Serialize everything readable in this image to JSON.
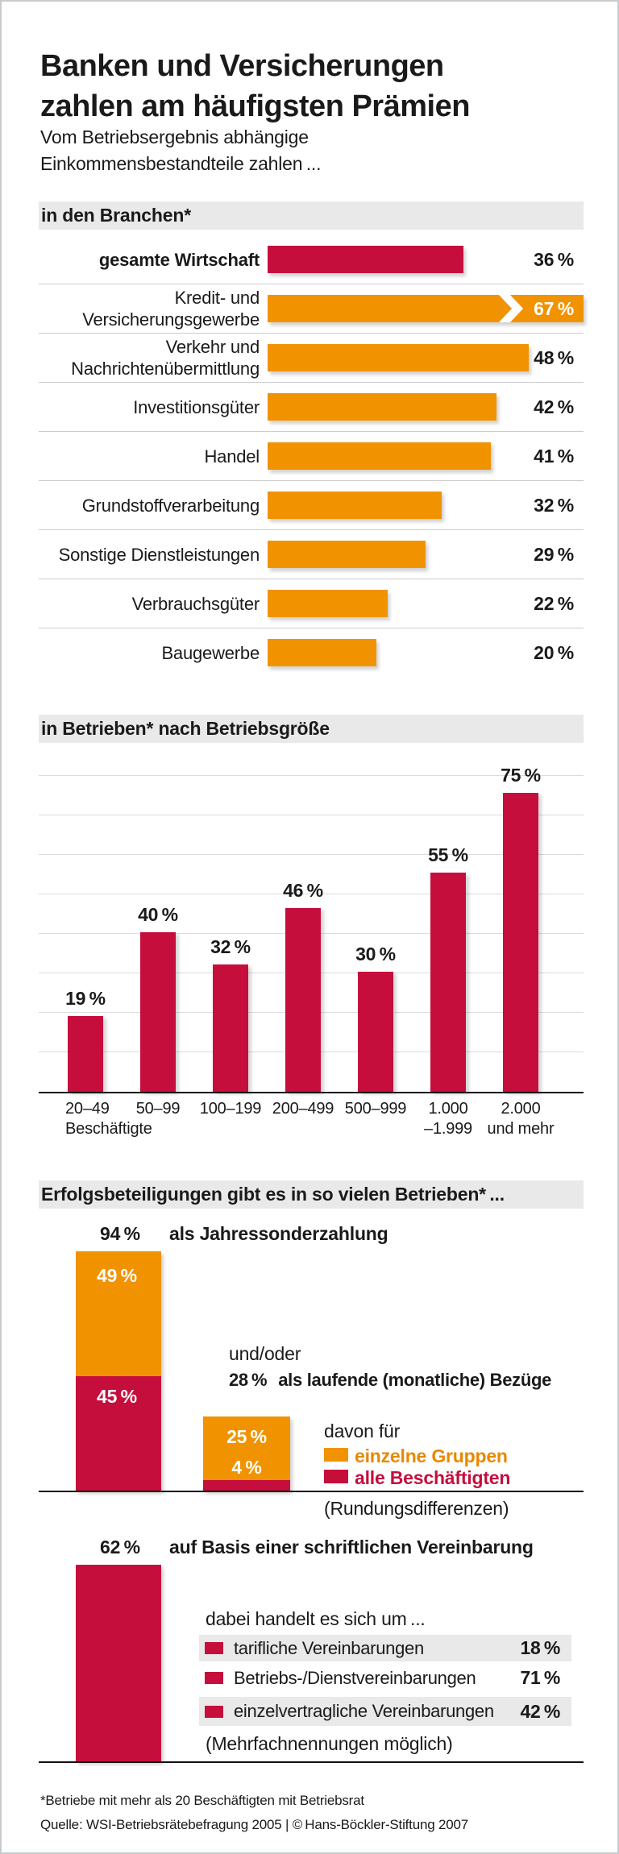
{
  "accent_colors": {
    "red": "#C50E3C",
    "orange": "#F19300",
    "band_gray": "#E9E9E9"
  },
  "title": {
    "line1": "Banken und Versicherungen",
    "line2": "zahlen am häufigsten Prämien"
  },
  "subtitle": {
    "line1": "Vom Betriebsergebnis abhängige",
    "line2": "Einkommensbestandteile zahlen ..."
  },
  "branch_chart": {
    "header": "in den Branchen*",
    "rows": [
      {
        "label": "gesamte Wirtschaft",
        "value": 36,
        "value_label": "36 %",
        "color": "red"
      },
      {
        "label": "Kredit- und",
        "label2": "Versicherungsgewerbe",
        "value": 67,
        "value_label": "67 %",
        "color": "orange",
        "truncated": true
      },
      {
        "label": "Verkehr und",
        "label2": "Nachrichtenübermittlung",
        "value": 48,
        "value_label": "48 %",
        "color": "orange"
      },
      {
        "label": "Investitionsgüter",
        "value": 42,
        "value_label": "42 %",
        "color": "orange"
      },
      {
        "label": "Handel",
        "value": 41,
        "value_label": "41 %",
        "color": "orange"
      },
      {
        "label": "Grundstoffverarbeitung",
        "value": 32,
        "value_label": "32 %",
        "color": "orange"
      },
      {
        "label": "Sonstige Dienstleistungen",
        "value": 29,
        "value_label": "29 %",
        "color": "orange"
      },
      {
        "label": "Verbrauchsgüter",
        "value": 22,
        "value_label": "22 %",
        "color": "orange"
      },
      {
        "label": "Baugewerbe",
        "value": 20,
        "value_label": "20 %",
        "color": "orange"
      }
    ]
  },
  "size_chart": {
    "header": "in Betrieben* nach Betriebsgröße",
    "values": [
      19,
      40,
      32,
      46,
      30,
      55,
      75
    ],
    "value_labels": [
      "19 %",
      "40 %",
      "32 %",
      "46 %",
      "30 %",
      "55 %",
      "75 %"
    ],
    "categories": [
      {
        "l1": "20–49",
        "l2": "Beschäftigte"
      },
      {
        "l1": "50–99"
      },
      {
        "l1": "100–199"
      },
      {
        "l1": "200–499"
      },
      {
        "l1": "500–999"
      },
      {
        "l1": "1.000",
        "l2": "–1.999"
      },
      {
        "l1": "2.000",
        "l2": "und mehr"
      }
    ]
  },
  "share_section": {
    "header": "Erfolgsbeteiligungen gibt es in so vielen Betrieben* ...",
    "annual": {
      "value_label": "94 %",
      "text": "als Jahressonderzahlung",
      "orange_value": 49,
      "orange_label": "49 %",
      "red_value": 45,
      "red_label": "45 %"
    },
    "and_or": "und/oder",
    "monthly": {
      "value_label": "28 %",
      "text": "als laufende (monatliche) Bezüge",
      "orange_value": 25,
      "orange_label": "25 %",
      "red_value": 4,
      "red_label": "4 %"
    },
    "davon": "davon für",
    "legend": [
      {
        "label": "einzelne Gruppen",
        "color": "#F19300"
      },
      {
        "label": "alle Beschäftigten",
        "color": "#C50E3C"
      }
    ],
    "rounding_note": "(Rundungsdifferenzen)",
    "written": {
      "value_label": "62 %",
      "value": 62,
      "text": "auf Basis einer schriftlichen Vereinbarung"
    },
    "dabei": "dabei handelt es sich um ...",
    "agreements": [
      {
        "label": "tarifliche Vereinbarungen",
        "value_label": "18 %"
      },
      {
        "label": "Betriebs-/Dienstvereinbarungen",
        "value_label": "71 %"
      },
      {
        "label": "einzelvertragliche Vereinbarungen",
        "value_label": "42 %"
      }
    ],
    "multi_note": "(Mehrfachnennungen möglich)"
  },
  "footer": {
    "note": "*Betriebe mit mehr als 20 Beschäftigten mit Betriebsrat",
    "source": "Quelle: WSI-Betriebsrätebefragung 2005 | © Hans-Böckler-Stiftung 2007"
  },
  "chart_data": [
    {
      "type": "bar",
      "orientation": "horizontal",
      "title": "in den Branchen*",
      "unit": "%",
      "xlim": [
        0,
        58
      ],
      "categories": [
        "gesamte Wirtschaft",
        "Kredit- und Versicherungsgewerbe",
        "Verkehr und Nachrichtenübermittlung",
        "Investitionsgüter",
        "Handel",
        "Grundstoffverarbeitung",
        "Sonstige Dienstleistungen",
        "Verbrauchsgüter",
        "Baugewerbe"
      ],
      "values": [
        36,
        67,
        48,
        42,
        41,
        32,
        29,
        22,
        20
      ],
      "bar_colors": [
        "#C50E3C",
        "#F19300",
        "#F19300",
        "#F19300",
        "#F19300",
        "#F19300",
        "#F19300",
        "#F19300",
        "#F19300"
      ],
      "note": "67%-Balken überschreitet die Skala und ist mit Bruchsymbol gekürzt; Wert steht weiß im Balken"
    },
    {
      "type": "bar",
      "orientation": "vertical",
      "title": "in Betrieben* nach Betriebsgröße",
      "unit": "%",
      "categories": [
        "20–49 Beschäftigte",
        "50–99",
        "100–199",
        "200–499",
        "500–999",
        "1.000–1.999",
        "2.000 und mehr"
      ],
      "values": [
        19,
        40,
        32,
        46,
        30,
        55,
        75
      ],
      "ylim": [
        0,
        85
      ],
      "gridline_step": 10,
      "grid": true,
      "bar_color": "#C50E3C",
      "data_labels": "above bars"
    },
    {
      "type": "bar",
      "stacked": true,
      "title": "Erfolgsbeteiligungen gibt es in so vielen Betrieben* ...",
      "unit": "%",
      "categories": [
        "als Jahressonderzahlung (94 %)",
        "als laufende (monatliche) Bezüge (28 %)"
      ],
      "series": [
        {
          "name": "einzelne Gruppen",
          "color": "#F19300",
          "values": [
            49,
            25
          ]
        },
        {
          "name": "alle Beschäftigten",
          "color": "#C50E3C",
          "values": [
            45,
            4
          ]
        }
      ],
      "notes": [
        "und/oder",
        "davon für",
        "(Rundungsdifferenzen)"
      ],
      "extra_bar": {
        "label": "auf Basis einer schriftlichen Vereinbarung",
        "value": 62,
        "color": "#C50E3C"
      },
      "agreement_breakdown": [
        {
          "label": "tarifliche Vereinbarungen",
          "value": 18
        },
        {
          "label": "Betriebs-/Dienstvereinbarungen",
          "value": 71
        },
        {
          "label": "einzelvertragliche Vereinbarungen",
          "value": 42
        }
      ],
      "footnote": "(Mehrfachnennungen möglich)"
    }
  ]
}
